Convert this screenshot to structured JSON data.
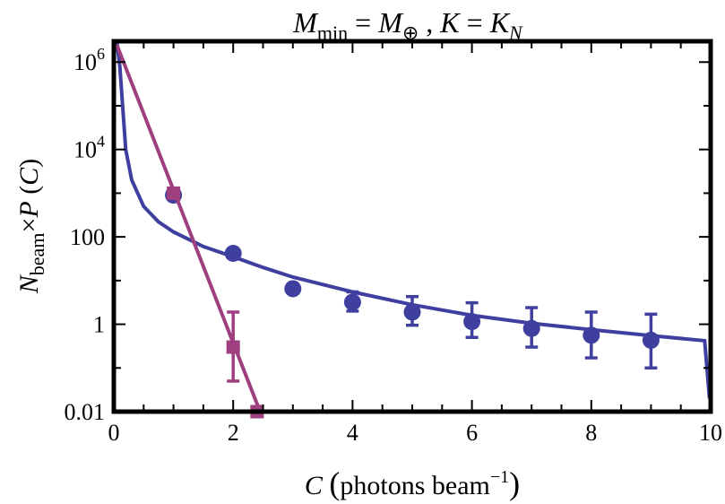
{
  "chart_data": {
    "type": "scatter",
    "title": "M_min = M_⊕ , K = K_N",
    "title_parts": {
      "main": "M",
      "sub": "min",
      "eq1": " = ",
      "rhs": "M",
      "rhs_sub": "⊕",
      "sep": " ,  ",
      "k": "K",
      "eq2": " = ",
      "krhs": "K",
      "krhs_sub": "N"
    },
    "xlabel": "C (photons beam⁻¹)",
    "xlabel_parts": {
      "var": "C",
      "open": "(",
      "text": "photons beam",
      "sup": "−1",
      "close": ")"
    },
    "ylabel": "N_beam × P(C)",
    "ylabel_parts": {
      "var": "N",
      "sub": "beam",
      "times": "×",
      "func": "P",
      "open": "(",
      "arg": "C",
      "close": ")"
    },
    "xlim": [
      0,
      10
    ],
    "ylim": [
      0.01,
      3000000
    ],
    "yscale": "log",
    "grid": false,
    "x_ticks": [
      {
        "value": 0,
        "label": "0"
      },
      {
        "value": 2,
        "label": "2"
      },
      {
        "value": 4,
        "label": "4"
      },
      {
        "value": 6,
        "label": "6"
      },
      {
        "value": 8,
        "label": "8"
      },
      {
        "value": 10,
        "label": "10"
      }
    ],
    "y_ticks": [
      {
        "value": 0.01,
        "label": "0.01",
        "base": "",
        "exp": ""
      },
      {
        "value": 1,
        "label": "1",
        "base": "",
        "exp": ""
      },
      {
        "value": 100,
        "label": "100",
        "base": "",
        "exp": ""
      },
      {
        "value": 10000,
        "label": "10^4",
        "base": "10",
        "exp": "4"
      },
      {
        "value": 1000000,
        "label": "10^6",
        "base": "10",
        "exp": "6"
      }
    ],
    "series": [
      {
        "color": "#3f3f9f",
        "marker": "circle",
        "points": [
          {
            "x": 1,
            "y": 900
          },
          {
            "x": 2,
            "y": 42
          },
          {
            "x": 3,
            "y": 6.5
          },
          {
            "x": 4,
            "y": 3.2,
            "err_low": 2.0,
            "err_high": 5.5
          },
          {
            "x": 5,
            "y": 1.9,
            "err_low": 0.95,
            "err_high": 4.3
          },
          {
            "x": 6,
            "y": 1.15,
            "err_low": 0.5,
            "err_high": 3.1
          },
          {
            "x": 7,
            "y": 0.8,
            "err_low": 0.3,
            "err_high": 2.4
          },
          {
            "x": 8,
            "y": 0.56,
            "err_low": 0.17,
            "err_high": 1.9
          },
          {
            "x": 9,
            "y": 0.43,
            "err_low": 0.1,
            "err_high": 1.7
          }
        ],
        "curve": {
          "x": [
            0.05,
            0.1,
            0.2,
            0.3,
            0.5,
            0.75,
            1,
            1.5,
            2,
            2.5,
            3,
            4,
            5,
            6,
            7,
            8,
            9,
            9.9,
            9.98
          ],
          "y": [
            40000000,
            800000,
            10000,
            2000,
            500,
            220,
            130,
            60,
            35,
            20,
            12,
            5.5,
            2.8,
            1.6,
            1.05,
            0.75,
            0.55,
            0.42,
            0.02
          ]
        }
      },
      {
        "color": "#9f3f7f",
        "marker": "square",
        "points": [
          {
            "x": 1,
            "y": 1000
          },
          {
            "x": 2,
            "y": 0.3,
            "err_low": 0.05,
            "err_high": 1.9
          },
          {
            "x": 2.4,
            "y": 0.01
          }
        ],
        "curve": {
          "x": [
            0.05,
            2.45
          ],
          "y": [
            2500000,
            0.01
          ]
        }
      }
    ]
  }
}
